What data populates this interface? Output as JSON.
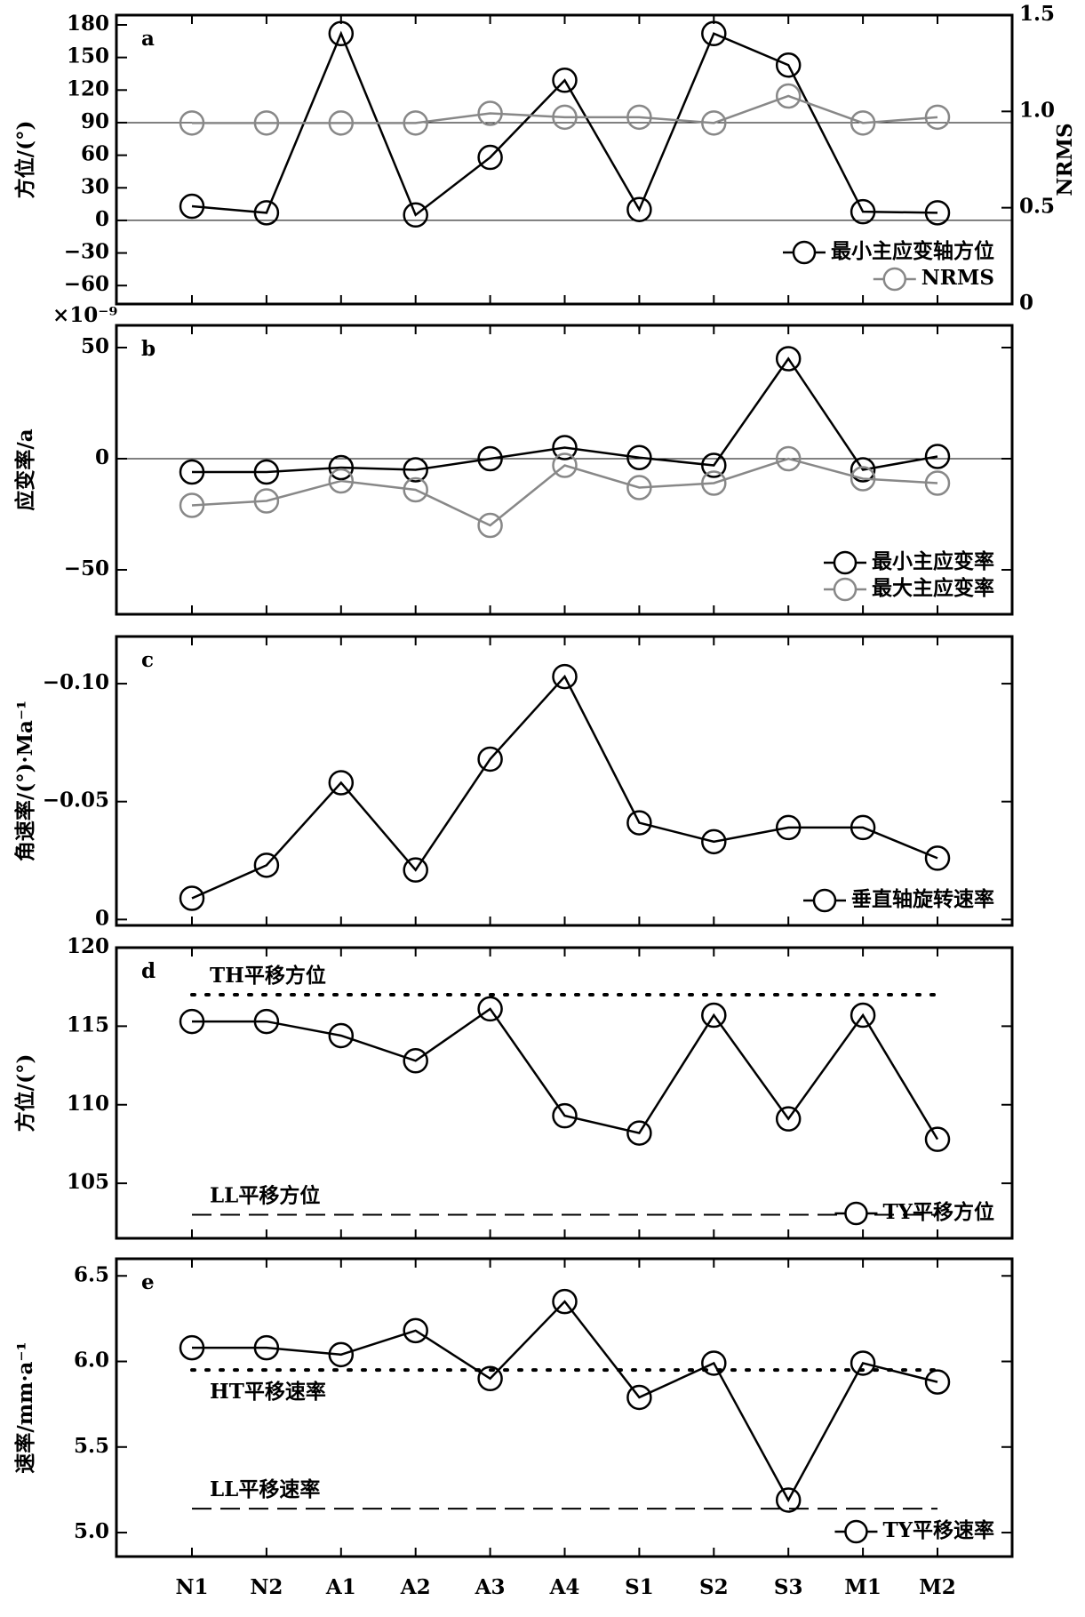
{
  "chart_data": [
    {
      "type": "line",
      "panel_label": "a",
      "y_label": "方位/(°)",
      "y2_label": "NRMS",
      "ylim": [
        -77,
        189
      ],
      "yticks": [
        180,
        150,
        120,
        90,
        60,
        30,
        0,
        {
          "value": -30,
          "label": "−30"
        },
        {
          "value": -60,
          "label": "−60"
        }
      ],
      "y2lim": [
        0,
        1.5
      ],
      "y2ticks": [
        1.5,
        {
          "value": 1.0,
          "label": "1.0"
        },
        0.5,
        0
      ],
      "hlines": [
        {
          "value": 0,
          "style": "solid"
        },
        {
          "value": 90,
          "style": "solid"
        }
      ],
      "legend": "lower right",
      "series": [
        {
          "name": "最小主应变轴方位",
          "color": "#000000",
          "values": [
            13,
            7,
            172,
            5,
            58,
            129,
            10,
            172,
            143,
            8,
            7
          ]
        },
        {
          "name": "NRMS",
          "color": "#888888",
          "axis": "y2",
          "values": [
            0.94,
            0.94,
            0.94,
            0.94,
            0.99,
            0.97,
            0.97,
            0.94,
            1.08,
            0.94,
            0.97
          ]
        }
      ]
    },
    {
      "type": "line",
      "panel_label": "b",
      "y_label": "应变率/a",
      "y_multiplier": "×10⁻⁹",
      "ylim": [
        -70,
        60
      ],
      "yticks": [
        50,
        0,
        {
          "value": -50,
          "label": "−50"
        }
      ],
      "hlines": [
        {
          "value": 0,
          "style": "solid"
        }
      ],
      "legend": "lower right",
      "series": [
        {
          "name": "最小主应变率",
          "color": "#000000",
          "values": [
            -6,
            -6,
            -4,
            -5,
            0,
            5,
            0.5,
            -3,
            45,
            -5,
            1
          ]
        },
        {
          "name": "最大主应变率",
          "color": "#888888",
          "values": [
            -21,
            -19,
            -10,
            -14,
            -30,
            -3,
            -13,
            -11,
            0,
            -9,
            -11
          ]
        }
      ]
    },
    {
      "type": "line",
      "panel_label": "c",
      "y_label": "角速率/(°)·Ma⁻¹",
      "ylim": [
        0.0025,
        -0.12
      ],
      "yticks": [
        {
          "value": -0.1,
          "label": "−0.10"
        },
        {
          "value": -0.05,
          "label": "−0.05"
        },
        0
      ],
      "legend": "lower right",
      "series": [
        {
          "name": "垂直轴旋转速率",
          "color": "#000000",
          "values": [
            -0.009,
            -0.023,
            -0.058,
            -0.021,
            -0.068,
            -0.103,
            -0.041,
            -0.033,
            -0.039,
            -0.039,
            -0.026
          ]
        }
      ]
    },
    {
      "type": "line",
      "panel_label": "d",
      "y_label": "方位/(°)",
      "ylim": [
        101.5,
        120
      ],
      "yticks": [
        120,
        115,
        110,
        105
      ],
      "hlines": [
        {
          "value": 117,
          "style": "dotted",
          "label": "TH平移方位",
          "label_side": "above"
        },
        {
          "value": 103,
          "style": "dashed",
          "label": "LL平移方位",
          "label_side": "above"
        }
      ],
      "legend": "lower right",
      "series": [
        {
          "name": "TY平移方位",
          "color": "#000000",
          "values": [
            115.3,
            115.3,
            114.4,
            112.8,
            116.1,
            109.3,
            108.2,
            115.7,
            109.1,
            115.7,
            107.8
          ]
        }
      ]
    },
    {
      "type": "line",
      "panel_label": "e",
      "y_label": "速率/mm·a⁻¹",
      "ylim": [
        4.86,
        6.6
      ],
      "yticks": [
        6.5,
        {
          "value": 6.0,
          "label": "6.0"
        },
        5.5,
        {
          "value": 5.0,
          "label": "5.0"
        }
      ],
      "hlines": [
        {
          "value": 5.95,
          "style": "dotted",
          "label": "HT平移速率",
          "label_side": "below"
        },
        {
          "value": 5.14,
          "style": "dashed",
          "label": "LL平移速率",
          "label_side": "above"
        }
      ],
      "legend": "lower right",
      "categories": [
        "N1",
        "N2",
        "A1",
        "A2",
        "A3",
        "A4",
        "S1",
        "S2",
        "S3",
        "M1",
        "M2"
      ],
      "series": [
        {
          "name": "TY平移速率",
          "color": "#000000",
          "values": [
            6.08,
            6.08,
            6.04,
            6.18,
            5.9,
            6.35,
            5.79,
            5.99,
            5.19,
            5.99,
            5.88
          ]
        }
      ]
    }
  ]
}
